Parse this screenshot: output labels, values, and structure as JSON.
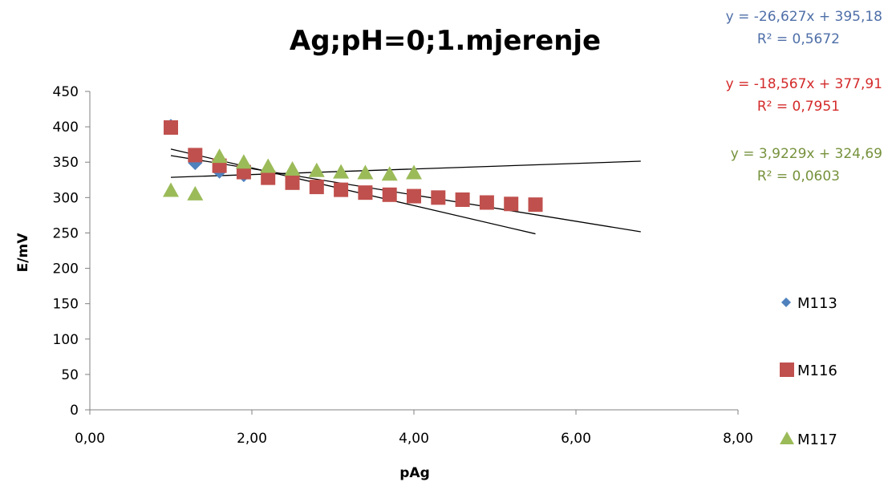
{
  "chart_data": {
    "type": "scatter",
    "title": "Ag;pH=0;1.mjerenje",
    "xlabel": "pAg",
    "ylabel": "E/mV",
    "xlim": [
      0,
      8
    ],
    "ylim": [
      0,
      450
    ],
    "x_ticks": [
      "0,00",
      "2,00",
      "4,00",
      "6,00",
      "8,00"
    ],
    "y_ticks": [
      "0",
      "50",
      "100",
      "150",
      "200",
      "250",
      "300",
      "350",
      "400",
      "450"
    ],
    "grid": false,
    "legend_position": "right",
    "series": [
      {
        "name": "M113",
        "marker": "diamond",
        "color": "#4f81bd",
        "x": [
          1.0,
          1.3,
          1.6,
          1.9,
          2.2
        ],
        "y": [
          401,
          349,
          337,
          332,
          336
        ],
        "trendline": {
          "x": [
            1.0,
            5.5
          ],
          "equation": "y = -26,627x + 395,18",
          "r2": "R² = 0,5672",
          "eq_color": "#4f6fa8"
        }
      },
      {
        "name": "M116",
        "marker": "square",
        "color": "#c0504d",
        "x": [
          1.0,
          1.3,
          1.6,
          1.9,
          2.2,
          2.5,
          2.8,
          3.1,
          3.4,
          3.7,
          4.0,
          4.3,
          4.6,
          4.9,
          5.2,
          5.5
        ],
        "y": [
          399,
          360,
          345,
          336,
          328,
          321,
          315,
          311,
          307,
          304,
          302,
          300,
          297,
          293,
          291,
          290
        ],
        "trendline": {
          "x": [
            1.0,
            6.8
          ],
          "equation": "y = -18,567x + 377,91",
          "r2": "R² = 0,7951",
          "eq_color": "#d42a2a"
        }
      },
      {
        "name": "M117",
        "marker": "triangle",
        "color": "#9bbb59",
        "x": [
          1.0,
          1.3,
          1.6,
          1.9,
          2.2,
          2.5,
          2.8,
          3.1,
          3.4,
          3.7,
          4.0
        ],
        "y": [
          310,
          305,
          358,
          350,
          344,
          340,
          338,
          336,
          335,
          333,
          335
        ],
        "trendline": {
          "x": [
            1.0,
            6.8
          ],
          "equation": "y = 3,9229x + 324,69",
          "r2": "R² = 0,0603",
          "eq_color": "#76923c"
        }
      }
    ]
  }
}
